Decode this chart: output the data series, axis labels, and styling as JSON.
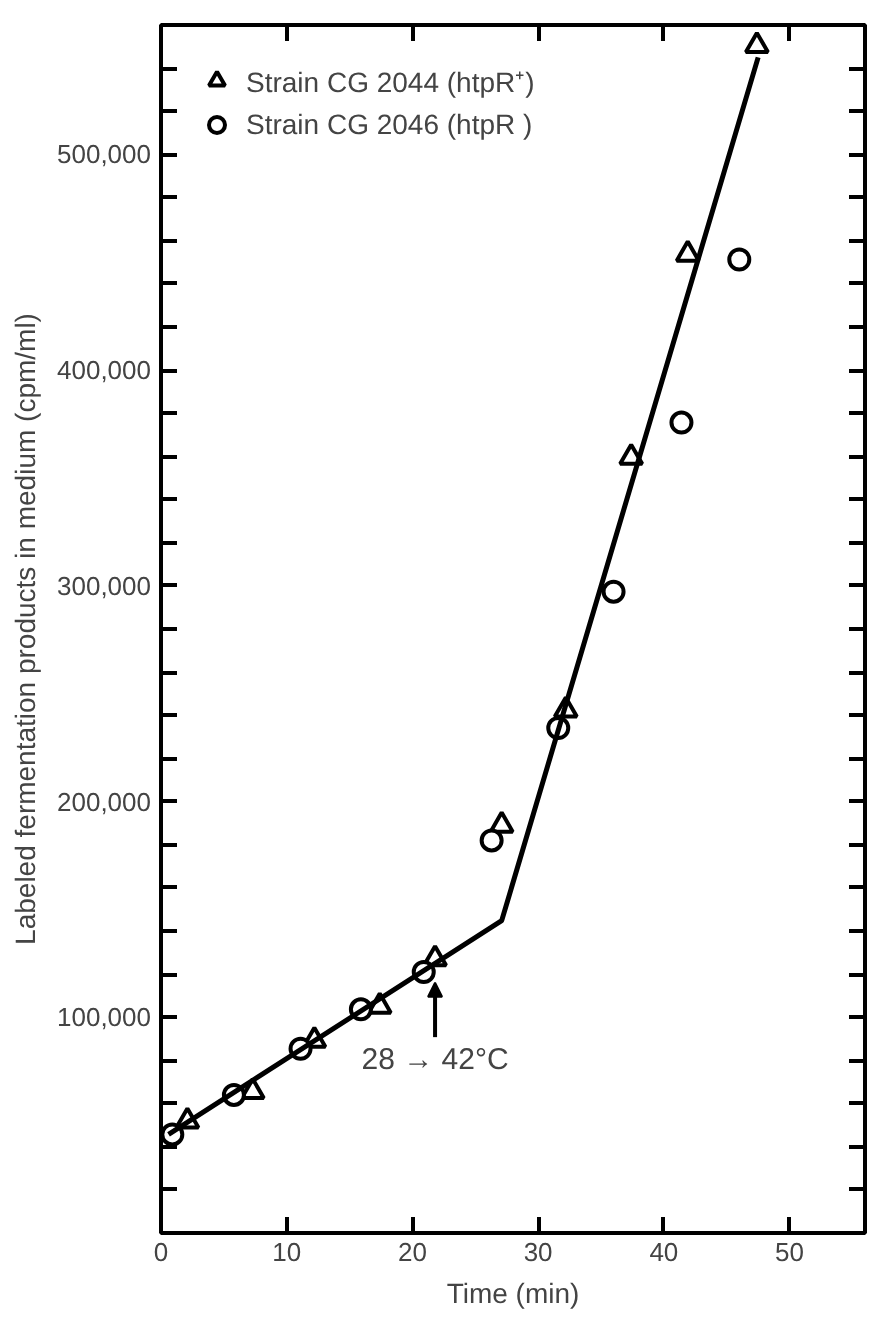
{
  "chart_data": {
    "type": "scatter",
    "xlabel": "Time (min)",
    "ylabel": "Labeled fermentation products in medium (cpm/ml)",
    "xlim": [
      0,
      56
    ],
    "ylim": [
      0,
      560000
    ],
    "xticks": [
      0,
      10,
      20,
      30,
      40,
      50
    ],
    "yticks": [
      {
        "value": 20000,
        "label": null
      },
      {
        "value": 40000,
        "label": null
      },
      {
        "value": 60000,
        "label": null
      },
      {
        "value": 80000,
        "label": null
      },
      {
        "value": 100000,
        "label": "100,000"
      },
      {
        "value": 120000,
        "label": null
      },
      {
        "value": 140000,
        "label": null
      },
      {
        "value": 160000,
        "label": null
      },
      {
        "value": 180000,
        "label": null
      },
      {
        "value": 200000,
        "label": "200,000"
      },
      {
        "value": 220000,
        "label": null
      },
      {
        "value": 240000,
        "label": null
      },
      {
        "value": 260000,
        "label": null
      },
      {
        "value": 280000,
        "label": null
      },
      {
        "value": 300000,
        "label": "300,000"
      },
      {
        "value": 320000,
        "label": null
      },
      {
        "value": 340000,
        "label": null
      },
      {
        "value": 360000,
        "label": null
      },
      {
        "value": 380000,
        "label": null
      },
      {
        "value": 400000,
        "label": "400,000"
      },
      {
        "value": 420000,
        "label": null
      },
      {
        "value": 440000,
        "label": null
      },
      {
        "value": 460000,
        "label": null
      },
      {
        "value": 480000,
        "label": null
      },
      {
        "value": 500000,
        "label": "500,000"
      },
      {
        "value": 520000,
        "label": null
      },
      {
        "value": 540000,
        "label": null
      }
    ],
    "grid": false,
    "legend": "top left",
    "series": [
      {
        "name": "Strain CG 2044 (htpR⁺)",
        "color": "#000000",
        "marker": "triangle",
        "x": [
          2.1,
          7.3,
          12.2,
          17.4,
          21.8,
          27.1,
          32.2,
          37.4,
          41.9,
          47.4
        ],
        "values": [
          51800,
          65500,
          89300,
          105100,
          127100,
          189000,
          242400,
          359500,
          453700,
          550400
        ]
      },
      {
        "name": "Strain CG 2046 (htpR )",
        "color": "#000000",
        "marker": "circle",
        "x": [
          0.9,
          5.8,
          11.1,
          15.9,
          20.9,
          26.3,
          31.6,
          36.0,
          41.4,
          46.0
        ],
        "values": [
          45700,
          64000,
          85400,
          103700,
          121000,
          182000,
          234100,
          297300,
          375700,
          451300
        ]
      },
      {
        "type": "line",
        "color": "#000000",
        "marker": "none",
        "x": [
          0.6,
          27.1,
          47.5
        ],
        "values": [
          45700,
          144800,
          545000
        ]
      }
    ],
    "annotations": [
      {
        "text": "28 → 42°C",
        "x": 21.8,
        "y": 116000
      }
    ]
  }
}
